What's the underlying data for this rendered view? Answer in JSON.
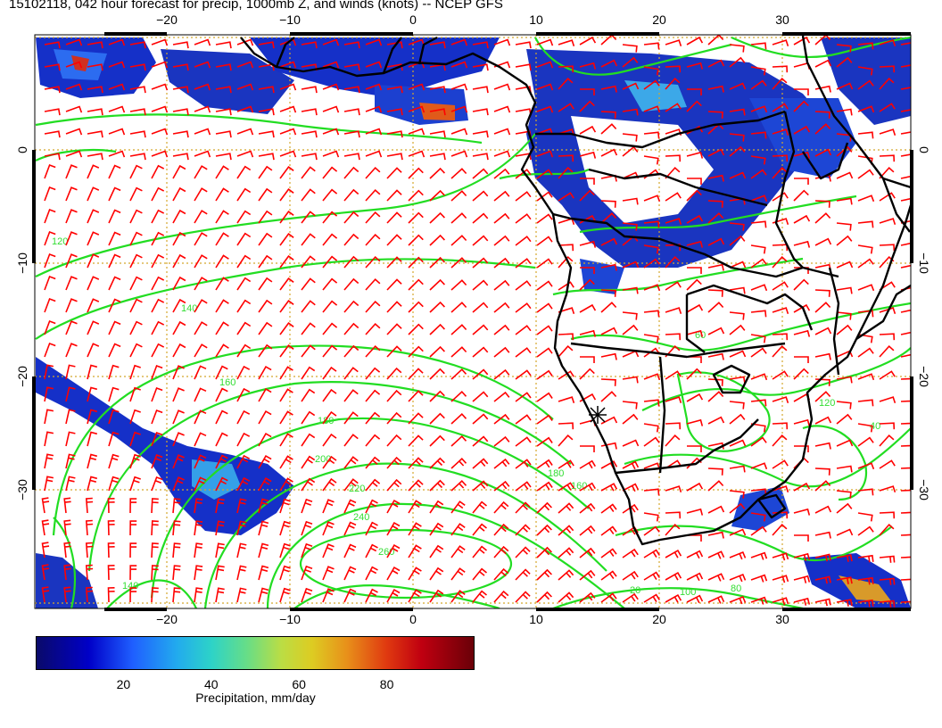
{
  "title": "15102118, 042 hour forecast for precip, 1000mb Z, and winds (knots) -- NCEP GFS",
  "map": {
    "lon_range": [
      -31,
      41
    ],
    "lat_range": [
      -40,
      10
    ],
    "x_ticks": [
      "−20",
      "−10",
      "0",
      "10",
      "20",
      "30"
    ],
    "y_ticks": [
      "0",
      "−10",
      "−20",
      "−30"
    ],
    "gridline_color": "#d4a72c",
    "contour_color": "#22dd22",
    "barb_color": "#ff0000",
    "coast_color": "#000000",
    "contour_labels": [
      "120",
      "140",
      "160",
      "180",
      "200",
      "220",
      "240",
      "260",
      "180",
      "160",
      "140",
      "120",
      "100",
      "80",
      "60",
      "40",
      "20"
    ]
  },
  "colorbar": {
    "ticks": [
      "20",
      "40",
      "60",
      "80"
    ],
    "tick_values": [
      20,
      40,
      60,
      80
    ],
    "range": [
      0,
      100
    ],
    "label": "Precipitation, mm/day"
  }
}
